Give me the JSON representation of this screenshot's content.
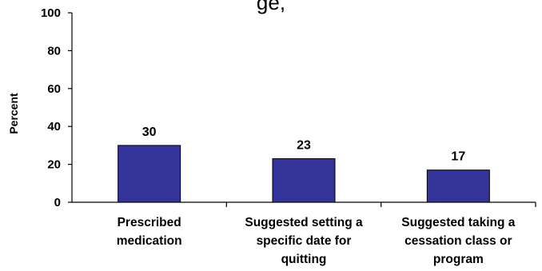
{
  "title_fragment": "ge,",
  "chart_data": {
    "type": "bar",
    "categories": [
      [
        "Prescribed",
        "medication"
      ],
      [
        "Suggested setting a",
        "specific date for",
        "quitting"
      ],
      [
        "Suggested taking a",
        "cessation class or",
        "program"
      ]
    ],
    "values": [
      30,
      23,
      17
    ],
    "data_labels": [
      "30",
      "23",
      "17"
    ],
    "ylabel": "Percent",
    "ylim": [
      0,
      100
    ],
    "yticks": [
      "0",
      "20",
      "40",
      "60",
      "80",
      "100"
    ],
    "bar_color": "#333399",
    "grid": false,
    "legend": "none"
  }
}
